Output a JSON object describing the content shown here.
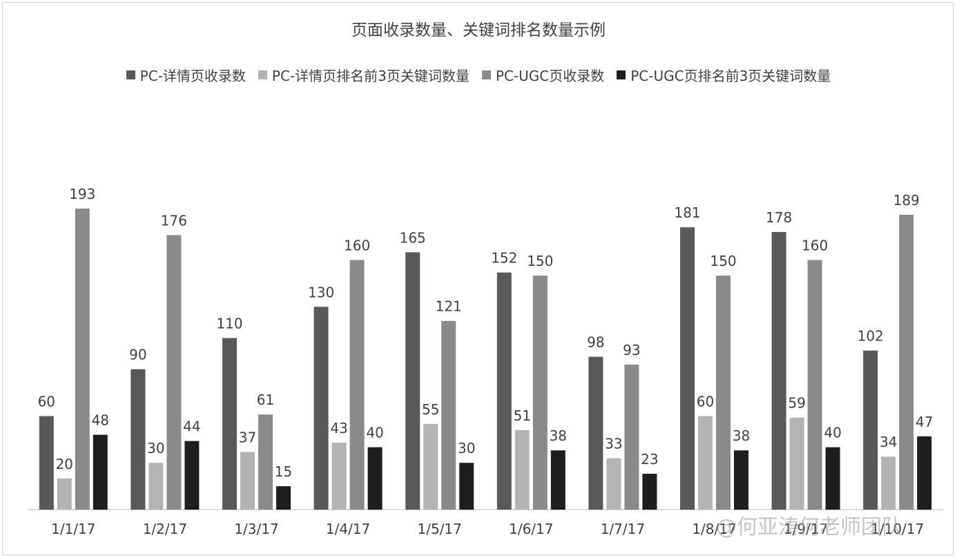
{
  "chart_data": {
    "type": "bar",
    "title": "页面收录数量、关键词排名数量示例",
    "categories": [
      "1/1/17",
      "1/2/17",
      "1/3/17",
      "1/4/17",
      "1/5/17",
      "1/6/17",
      "1/7/17",
      "1/8/17",
      "1/9/17",
      "1/10/17"
    ],
    "series": [
      {
        "name": "PC-详情页收录数",
        "color": "#595959",
        "values": [
          60,
          90,
          110,
          130,
          165,
          152,
          98,
          181,
          178,
          102
        ]
      },
      {
        "name": "PC-详情页排名前3页关键词数量",
        "color": "#b3b3b3",
        "values": [
          20,
          30,
          37,
          43,
          55,
          51,
          33,
          60,
          59,
          34
        ]
      },
      {
        "name": "PC-UGC页收录数",
        "color": "#8a8a8a",
        "values": [
          193,
          176,
          61,
          160,
          121,
          150,
          93,
          150,
          160,
          189
        ]
      },
      {
        "name": "PC-UGC页排名前3页关键词数量",
        "color": "#1e1e1e",
        "values": [
          48,
          44,
          15,
          40,
          30,
          38,
          23,
          38,
          40,
          47
        ]
      }
    ],
    "ylim": [
      0,
      200
    ],
    "grid": false,
    "legend_position": "top"
  },
  "watermark": "@何亚涛何老师团队"
}
